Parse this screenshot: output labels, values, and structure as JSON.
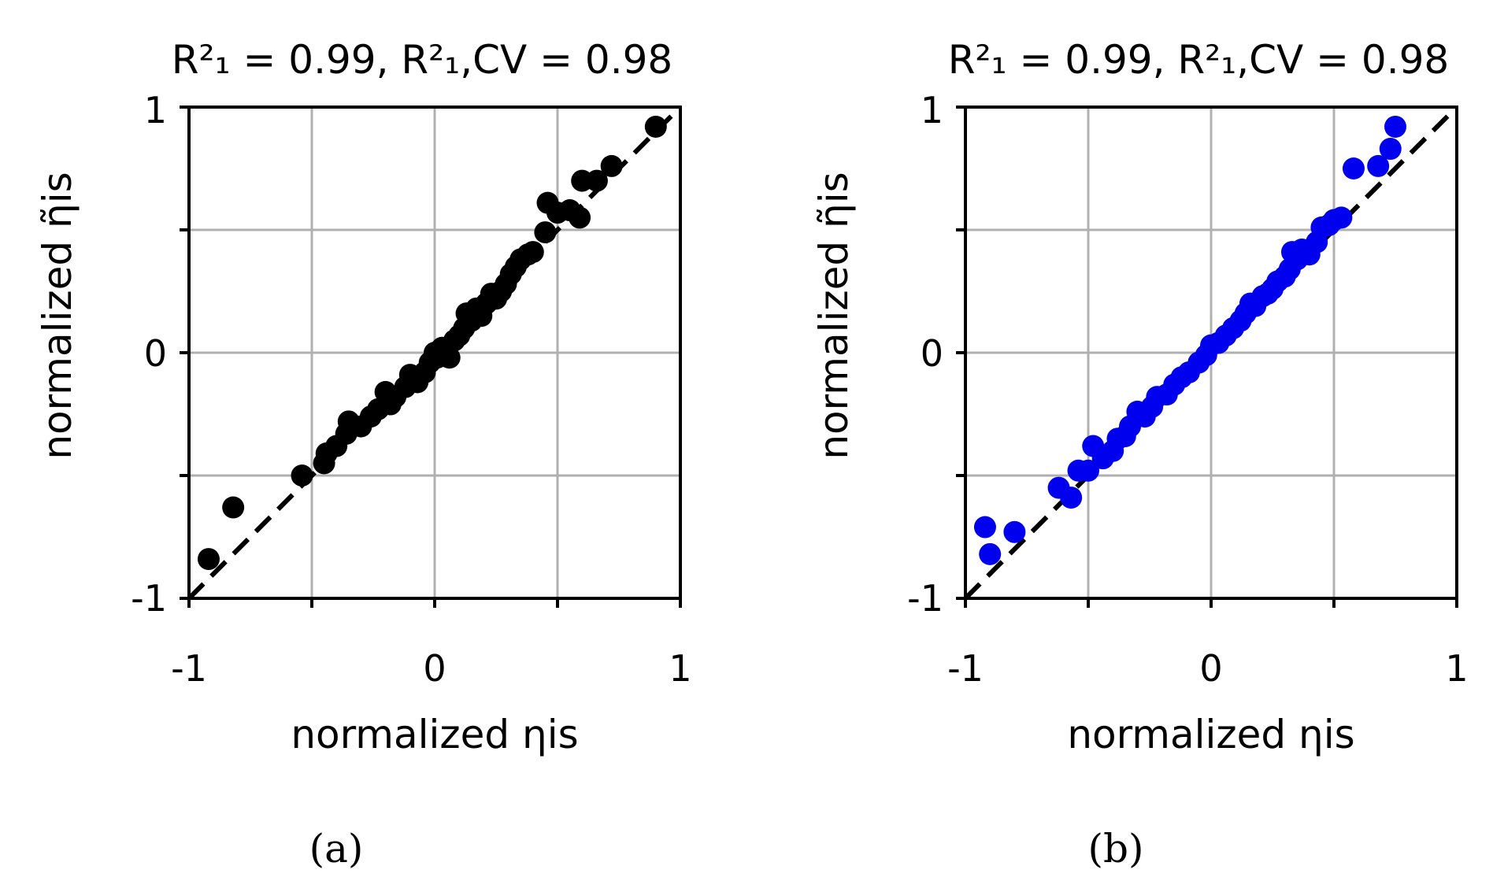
{
  "chart_data": [
    {
      "type": "scatter",
      "panel": "(a)",
      "title": "R²₁ = 0.99, R²₁,CV = 0.98",
      "xlabel": "normalized ηis",
      "ylabel": "normalized η̃is",
      "xlim": [
        -1,
        1
      ],
      "ylim": [
        -1,
        1
      ],
      "xticks": [
        "-1",
        "0",
        "1"
      ],
      "yticks": [
        "1",
        "0",
        "-1"
      ],
      "grid": true,
      "color": "#000000",
      "reference_line": "y = x (dashed)",
      "points": [
        [
          -0.92,
          -0.84
        ],
        [
          -0.82,
          -0.63
        ],
        [
          -0.54,
          -0.5
        ],
        [
          -0.45,
          -0.45
        ],
        [
          -0.44,
          -0.41
        ],
        [
          -0.4,
          -0.38
        ],
        [
          -0.36,
          -0.33
        ],
        [
          -0.35,
          -0.28
        ],
        [
          -0.3,
          -0.3
        ],
        [
          -0.26,
          -0.26
        ],
        [
          -0.23,
          -0.23
        ],
        [
          -0.2,
          -0.16
        ],
        [
          -0.18,
          -0.21
        ],
        [
          -0.16,
          -0.18
        ],
        [
          -0.12,
          -0.14
        ],
        [
          -0.1,
          -0.09
        ],
        [
          -0.07,
          -0.12
        ],
        [
          -0.04,
          -0.08
        ],
        [
          -0.02,
          -0.04
        ],
        [
          0.0,
          0.0
        ],
        [
          0.01,
          -0.02
        ],
        [
          0.03,
          0.02
        ],
        [
          0.06,
          -0.02
        ],
        [
          0.08,
          0.05
        ],
        [
          0.1,
          0.07
        ],
        [
          0.12,
          0.1
        ],
        [
          0.13,
          0.16
        ],
        [
          0.15,
          0.13
        ],
        [
          0.17,
          0.18
        ],
        [
          0.19,
          0.15
        ],
        [
          0.21,
          0.2
        ],
        [
          0.23,
          0.24
        ],
        [
          0.25,
          0.22
        ],
        [
          0.27,
          0.25
        ],
        [
          0.29,
          0.28
        ],
        [
          0.31,
          0.32
        ],
        [
          0.33,
          0.35
        ],
        [
          0.35,
          0.38
        ],
        [
          0.38,
          0.4
        ],
        [
          0.4,
          0.41
        ],
        [
          0.45,
          0.49
        ],
        [
          0.46,
          0.61
        ],
        [
          0.5,
          0.57
        ],
        [
          0.55,
          0.58
        ],
        [
          0.59,
          0.55
        ],
        [
          0.6,
          0.7
        ],
        [
          0.66,
          0.7
        ],
        [
          0.72,
          0.76
        ],
        [
          0.9,
          0.92
        ]
      ]
    },
    {
      "type": "scatter",
      "panel": "(b)",
      "title": "R²₁ = 0.99, R²₁,CV = 0.98",
      "xlabel": "normalized ηis",
      "ylabel": "normalized η̃is",
      "xlim": [
        -1,
        1
      ],
      "ylim": [
        -1,
        1
      ],
      "xticks": [
        "-1",
        "0",
        "1"
      ],
      "yticks": [
        "1",
        "0",
        "-1"
      ],
      "grid": true,
      "color": "#0000ee",
      "reference_line": "y = x (dashed)",
      "points": [
        [
          -0.92,
          -0.71
        ],
        [
          -0.9,
          -0.82
        ],
        [
          -0.8,
          -0.73
        ],
        [
          -0.62,
          -0.55
        ],
        [
          -0.57,
          -0.59
        ],
        [
          -0.54,
          -0.48
        ],
        [
          -0.5,
          -0.48
        ],
        [
          -0.48,
          -0.38
        ],
        [
          -0.44,
          -0.43
        ],
        [
          -0.4,
          -0.4
        ],
        [
          -0.38,
          -0.35
        ],
        [
          -0.35,
          -0.34
        ],
        [
          -0.33,
          -0.3
        ],
        [
          -0.3,
          -0.24
        ],
        [
          -0.27,
          -0.26
        ],
        [
          -0.24,
          -0.22
        ],
        [
          -0.22,
          -0.18
        ],
        [
          -0.18,
          -0.17
        ],
        [
          -0.15,
          -0.13
        ],
        [
          -0.12,
          -0.1
        ],
        [
          -0.09,
          -0.08
        ],
        [
          -0.05,
          -0.04
        ],
        [
          -0.02,
          -0.01
        ],
        [
          0.0,
          0.03
        ],
        [
          0.03,
          0.04
        ],
        [
          0.06,
          0.07
        ],
        [
          0.09,
          0.1
        ],
        [
          0.12,
          0.13
        ],
        [
          0.14,
          0.16
        ],
        [
          0.16,
          0.2
        ],
        [
          0.18,
          0.19
        ],
        [
          0.21,
          0.23
        ],
        [
          0.23,
          0.24
        ],
        [
          0.25,
          0.26
        ],
        [
          0.27,
          0.29
        ],
        [
          0.3,
          0.31
        ],
        [
          0.32,
          0.34
        ],
        [
          0.33,
          0.41
        ],
        [
          0.35,
          0.38
        ],
        [
          0.37,
          0.42
        ],
        [
          0.4,
          0.4
        ],
        [
          0.43,
          0.45
        ],
        [
          0.45,
          0.51
        ],
        [
          0.48,
          0.52
        ],
        [
          0.5,
          0.54
        ],
        [
          0.53,
          0.55
        ],
        [
          0.58,
          0.75
        ],
        [
          0.68,
          0.76
        ],
        [
          0.73,
          0.83
        ],
        [
          0.75,
          0.92
        ]
      ]
    }
  ]
}
